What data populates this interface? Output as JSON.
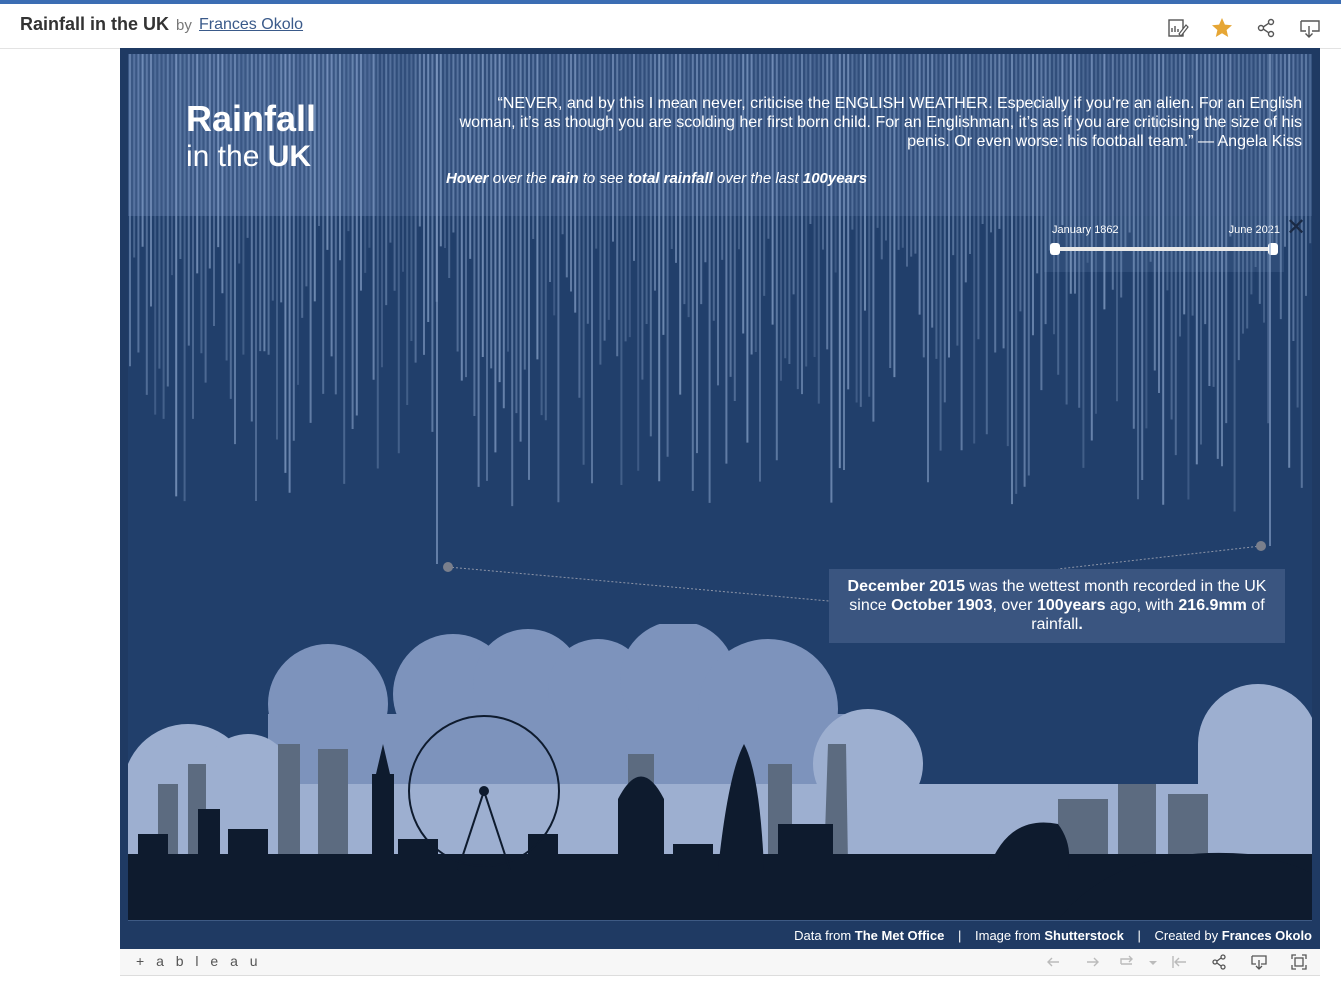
{
  "header": {
    "title": "Rainfall in the UK",
    "by": "by",
    "author": "Frances Okolo",
    "actions": [
      "edit-icon",
      "favorite-star-icon",
      "share-icon",
      "download-icon"
    ],
    "star_color": "#e6a635"
  },
  "viz": {
    "title_line1": "Rainfall",
    "title_line2_prefix": "in the",
    "title_line2_bold": "UK",
    "quote": "“NEVER, and by this I mean never, criticise the ENGLISH WEATHER. Especially if you’re an alien. For an English woman, it’s as though you are scolding her first born child. For an Englishman, it’s as if you are criticising the size of his penis. Or even worse: his football team.” — Angela Kiss",
    "hover_parts": [
      "Hover",
      " over the ",
      "rain",
      " to see ",
      "total rainfall",
      " over the last ",
      "100years"
    ],
    "slider": {
      "start_label": "January 1862",
      "end_label": "June 2021"
    },
    "callout_parts": [
      "December 2015",
      "  was the wettest month recorded in the UK since ",
      "October 1903",
      ",  over ",
      "100years",
      " ago, with ",
      "216.9mm",
      " of rainfall",
      "."
    ],
    "footer": {
      "data_prefix": "Data from ",
      "data_source": "The Met Office",
      "image_prefix": "Image from ",
      "image_source": "Shutterstock",
      "created_prefix": "Created by ",
      "created_by": "Frances Okolo",
      "separator": "|"
    },
    "colors": {
      "background": "#1f3a63",
      "rain": "#8fa9cf",
      "callout": "#3a5580",
      "cloud": "#7d93bc",
      "skyline_dark": "#0e1b2e"
    }
  },
  "toolbar": {
    "logo": "+ a b l e a u",
    "buttons": [
      "undo-icon",
      "redo-icon",
      "revert-icon",
      "revert-dropdown-icon",
      "first-icon",
      "share-icon",
      "download-icon",
      "fullscreen-icon"
    ]
  }
}
